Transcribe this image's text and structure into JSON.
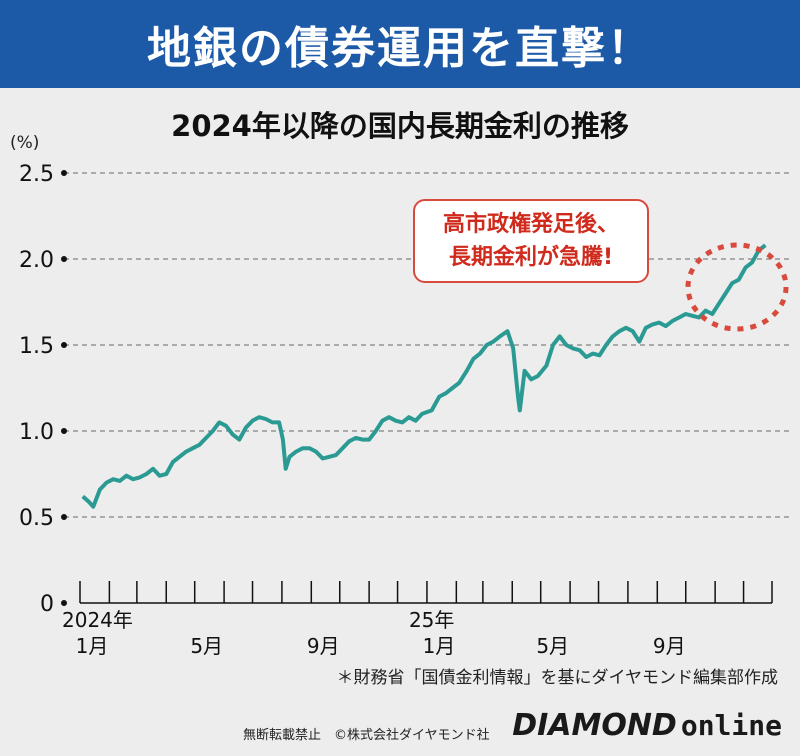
{
  "header": {
    "title": "地銀の債券運用を直撃！"
  },
  "callout": {
    "line1": "高市政権発足後、",
    "line2": "長期金利が急騰!"
  },
  "note": "＊財務省「国債金利情報」を基にダイヤモンド編集部作成",
  "footer": {
    "copyright": "無断転載禁止　©株式会社ダイヤモンド社",
    "logo_main": "DIAMOND",
    "logo_sub": "online"
  },
  "colors": {
    "header_bg": "#1c5aa8",
    "line": "#2a9a93",
    "callout": "#d84a3c"
  },
  "chart_data": {
    "type": "line",
    "title": "2024年以降の国内長期金利の推移",
    "ylabel": "(%)",
    "ylim": [
      0,
      2.5
    ],
    "yticks": [
      "0",
      "0.5",
      "1.0",
      "1.5",
      "2.0",
      "2.5"
    ],
    "ytick_values": [
      0,
      0.5,
      1.0,
      1.5,
      2.0,
      2.5
    ],
    "grid": true,
    "x_range": [
      "2024-01",
      "2025-12"
    ],
    "xticks": [
      {
        "year": "2024年",
        "month": "1月",
        "at": "2024-01"
      },
      {
        "year": "",
        "month": "5月",
        "at": "2024-05"
      },
      {
        "year": "",
        "month": "9月",
        "at": "2024-09"
      },
      {
        "year": "25年",
        "month": "1月",
        "at": "2025-01"
      },
      {
        "year": "",
        "month": "5月",
        "at": "2025-05"
      },
      {
        "year": "",
        "month": "9月",
        "at": "2025-09"
      }
    ],
    "series": [
      {
        "values": [
          [
            "2024-01-04",
            0.62
          ],
          [
            "2024-01-10",
            0.59
          ],
          [
            "2024-01-15",
            0.56
          ],
          [
            "2024-01-22",
            0.66
          ],
          [
            "2024-01-29",
            0.7
          ],
          [
            "2024-02-05",
            0.72
          ],
          [
            "2024-02-12",
            0.71
          ],
          [
            "2024-02-19",
            0.74
          ],
          [
            "2024-02-26",
            0.72
          ],
          [
            "2024-03-04",
            0.73
          ],
          [
            "2024-03-11",
            0.75
          ],
          [
            "2024-03-18",
            0.78
          ],
          [
            "2024-03-25",
            0.74
          ],
          [
            "2024-04-01",
            0.75
          ],
          [
            "2024-04-08",
            0.82
          ],
          [
            "2024-04-15",
            0.85
          ],
          [
            "2024-04-22",
            0.88
          ],
          [
            "2024-04-29",
            0.9
          ],
          [
            "2024-05-06",
            0.92
          ],
          [
            "2024-05-13",
            0.96
          ],
          [
            "2024-05-20",
            1.0
          ],
          [
            "2024-05-27",
            1.05
          ],
          [
            "2024-06-03",
            1.03
          ],
          [
            "2024-06-10",
            0.98
          ],
          [
            "2024-06-17",
            0.95
          ],
          [
            "2024-06-24",
            1.02
          ],
          [
            "2024-07-01",
            1.06
          ],
          [
            "2024-07-08",
            1.08
          ],
          [
            "2024-07-15",
            1.07
          ],
          [
            "2024-07-22",
            1.05
          ],
          [
            "2024-07-29",
            1.05
          ],
          [
            "2024-08-02",
            0.95
          ],
          [
            "2024-08-05",
            0.78
          ],
          [
            "2024-08-09",
            0.85
          ],
          [
            "2024-08-16",
            0.88
          ],
          [
            "2024-08-23",
            0.9
          ],
          [
            "2024-08-30",
            0.9
          ],
          [
            "2024-09-06",
            0.88
          ],
          [
            "2024-09-13",
            0.84
          ],
          [
            "2024-09-20",
            0.85
          ],
          [
            "2024-09-27",
            0.86
          ],
          [
            "2024-10-04",
            0.9
          ],
          [
            "2024-10-11",
            0.94
          ],
          [
            "2024-10-18",
            0.96
          ],
          [
            "2024-10-25",
            0.95
          ],
          [
            "2024-11-01",
            0.95
          ],
          [
            "2024-11-08",
            1.0
          ],
          [
            "2024-11-15",
            1.06
          ],
          [
            "2024-11-22",
            1.08
          ],
          [
            "2024-11-29",
            1.06
          ],
          [
            "2024-12-06",
            1.05
          ],
          [
            "2024-12-13",
            1.08
          ],
          [
            "2024-12-20",
            1.06
          ],
          [
            "2024-12-27",
            1.1
          ],
          [
            "2025-01-06",
            1.12
          ],
          [
            "2025-01-14",
            1.2
          ],
          [
            "2025-01-21",
            1.22
          ],
          [
            "2025-01-28",
            1.25
          ],
          [
            "2025-02-04",
            1.28
          ],
          [
            "2025-02-12",
            1.35
          ],
          [
            "2025-02-19",
            1.42
          ],
          [
            "2025-02-26",
            1.45
          ],
          [
            "2025-03-05",
            1.5
          ],
          [
            "2025-03-12",
            1.52
          ],
          [
            "2025-03-19",
            1.55
          ],
          [
            "2025-03-27",
            1.58
          ],
          [
            "2025-04-02",
            1.48
          ],
          [
            "2025-04-07",
            1.2
          ],
          [
            "2025-04-09",
            1.12
          ],
          [
            "2025-04-14",
            1.35
          ],
          [
            "2025-04-21",
            1.3
          ],
          [
            "2025-04-28",
            1.32
          ],
          [
            "2025-05-07",
            1.38
          ],
          [
            "2025-05-14",
            1.5
          ],
          [
            "2025-05-21",
            1.55
          ],
          [
            "2025-05-28",
            1.5
          ],
          [
            "2025-06-04",
            1.48
          ],
          [
            "2025-06-11",
            1.47
          ],
          [
            "2025-06-18",
            1.43
          ],
          [
            "2025-06-25",
            1.45
          ],
          [
            "2025-07-02",
            1.44
          ],
          [
            "2025-07-09",
            1.5
          ],
          [
            "2025-07-16",
            1.55
          ],
          [
            "2025-07-23",
            1.58
          ],
          [
            "2025-07-30",
            1.6
          ],
          [
            "2025-08-06",
            1.58
          ],
          [
            "2025-08-13",
            1.52
          ],
          [
            "2025-08-20",
            1.6
          ],
          [
            "2025-08-27",
            1.62
          ],
          [
            "2025-09-03",
            1.63
          ],
          [
            "2025-09-10",
            1.61
          ],
          [
            "2025-09-17",
            1.64
          ],
          [
            "2025-09-24",
            1.66
          ],
          [
            "2025-10-01",
            1.68
          ],
          [
            "2025-10-08",
            1.67
          ],
          [
            "2025-10-15",
            1.66
          ],
          [
            "2025-10-22",
            1.7
          ],
          [
            "2025-10-29",
            1.68
          ],
          [
            "2025-11-05",
            1.74
          ],
          [
            "2025-11-12",
            1.8
          ],
          [
            "2025-11-19",
            1.86
          ],
          [
            "2025-11-26",
            1.88
          ],
          [
            "2025-12-03",
            1.95
          ],
          [
            "2025-12-10",
            1.98
          ],
          [
            "2025-12-17",
            2.05
          ],
          [
            "2025-12-24",
            2.08
          ]
        ]
      }
    ]
  }
}
